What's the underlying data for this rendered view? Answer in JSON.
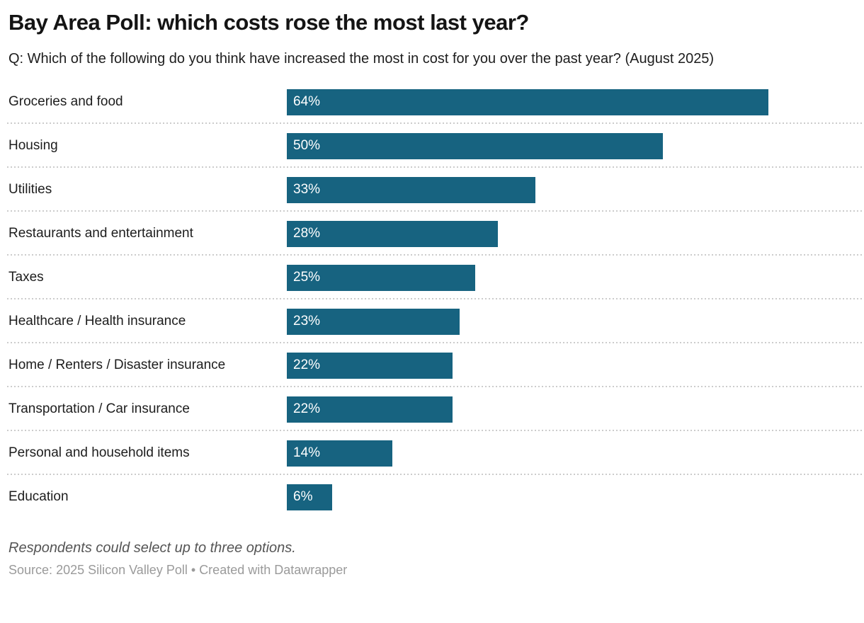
{
  "header": {
    "title": "Bay Area Poll: which costs rose the most last year?",
    "subtitle": "Q: Which of the following do you think have increased the most in cost for you over the past year? (August 2025)"
  },
  "chart_data": {
    "type": "bar",
    "orientation": "horizontal",
    "title": "Bay Area Poll: which costs rose the most last year?",
    "subtitle": "Q: Which of the following do you think have increased the most in cost for you over the past year? (August 2025)",
    "categories": [
      "Groceries and food",
      "Housing",
      "Utilities",
      "Restaurants and entertainment",
      "Taxes",
      "Healthcare / Health insurance",
      "Home / Renters / Disaster insurance",
      "Transportation / Car insurance",
      "Personal and household items",
      "Education"
    ],
    "values": [
      64,
      50,
      33,
      28,
      25,
      23,
      22,
      22,
      14,
      6
    ],
    "value_suffix": "%",
    "xlabel": "",
    "ylabel": "",
    "xlim": [
      0,
      64
    ],
    "bar_color": "#176380",
    "value_label_color": "#ffffff",
    "grid": "dotted-row-separators",
    "legend": "none"
  },
  "footer": {
    "note": "Respondents could select up to three options.",
    "source_prefix": "Source:",
    "source_name": "2025 Silicon Valley Poll",
    "separator": "•",
    "attribution": "Created with Datawrapper"
  }
}
